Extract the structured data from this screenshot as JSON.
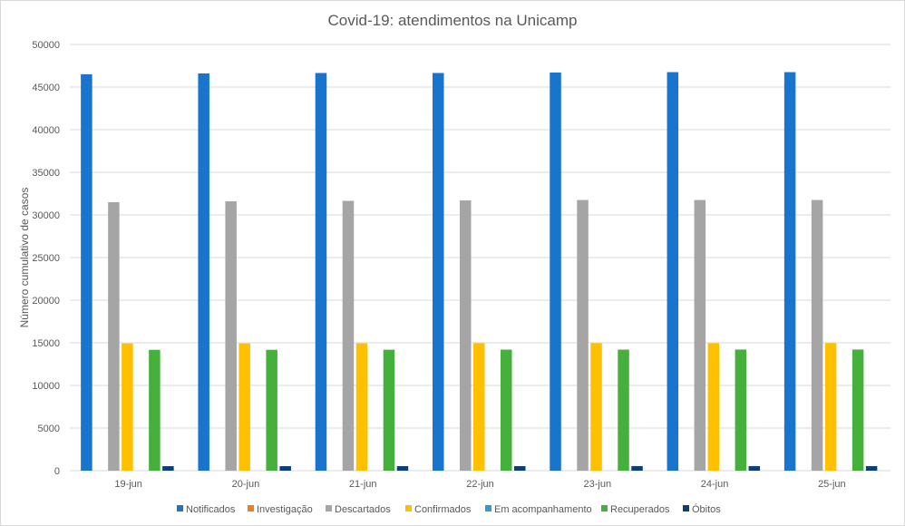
{
  "chart_data": {
    "type": "bar",
    "title": "Covid-19: atendimentos na Unicamp",
    "xlabel": "",
    "ylabel": "Número  cumulativo de casos",
    "ylim": [
      0,
      50000
    ],
    "yticks": [
      0,
      5000,
      10000,
      15000,
      20000,
      25000,
      30000,
      35000,
      40000,
      45000,
      50000
    ],
    "grid": true,
    "legend_position": "bottom",
    "categories": [
      "19-jun",
      "20-jun",
      "21-jun",
      "22-jun",
      "23-jun",
      "24-jun",
      "25-jun"
    ],
    "series": [
      {
        "name": "Notificados",
        "color": "#1874CD",
        "values": [
          46500,
          46600,
          46650,
          46650,
          46700,
          46750,
          46750
        ]
      },
      {
        "name": "Investigação",
        "color": "#F47A20",
        "values": [
          0,
          0,
          0,
          0,
          0,
          0,
          0
        ]
      },
      {
        "name": "Descartados",
        "color": "#A5A5A5",
        "values": [
          31500,
          31600,
          31650,
          31700,
          31750,
          31750,
          31750
        ]
      },
      {
        "name": "Confirmados",
        "color": "#FFC000",
        "values": [
          14930,
          14930,
          14940,
          14950,
          14960,
          14960,
          14970
        ]
      },
      {
        "name": "Em acompanhamento",
        "color": "#2E9AD6",
        "values": [
          0,
          0,
          0,
          0,
          0,
          0,
          0
        ]
      },
      {
        "name": "Recuperados",
        "color": "#46B03C",
        "values": [
          14180,
          14180,
          14190,
          14200,
          14200,
          14210,
          14210
        ]
      },
      {
        "name": "Óbitos",
        "color": "#0B3F7A",
        "values": [
          530,
          530,
          535,
          535,
          540,
          540,
          540
        ]
      }
    ]
  }
}
